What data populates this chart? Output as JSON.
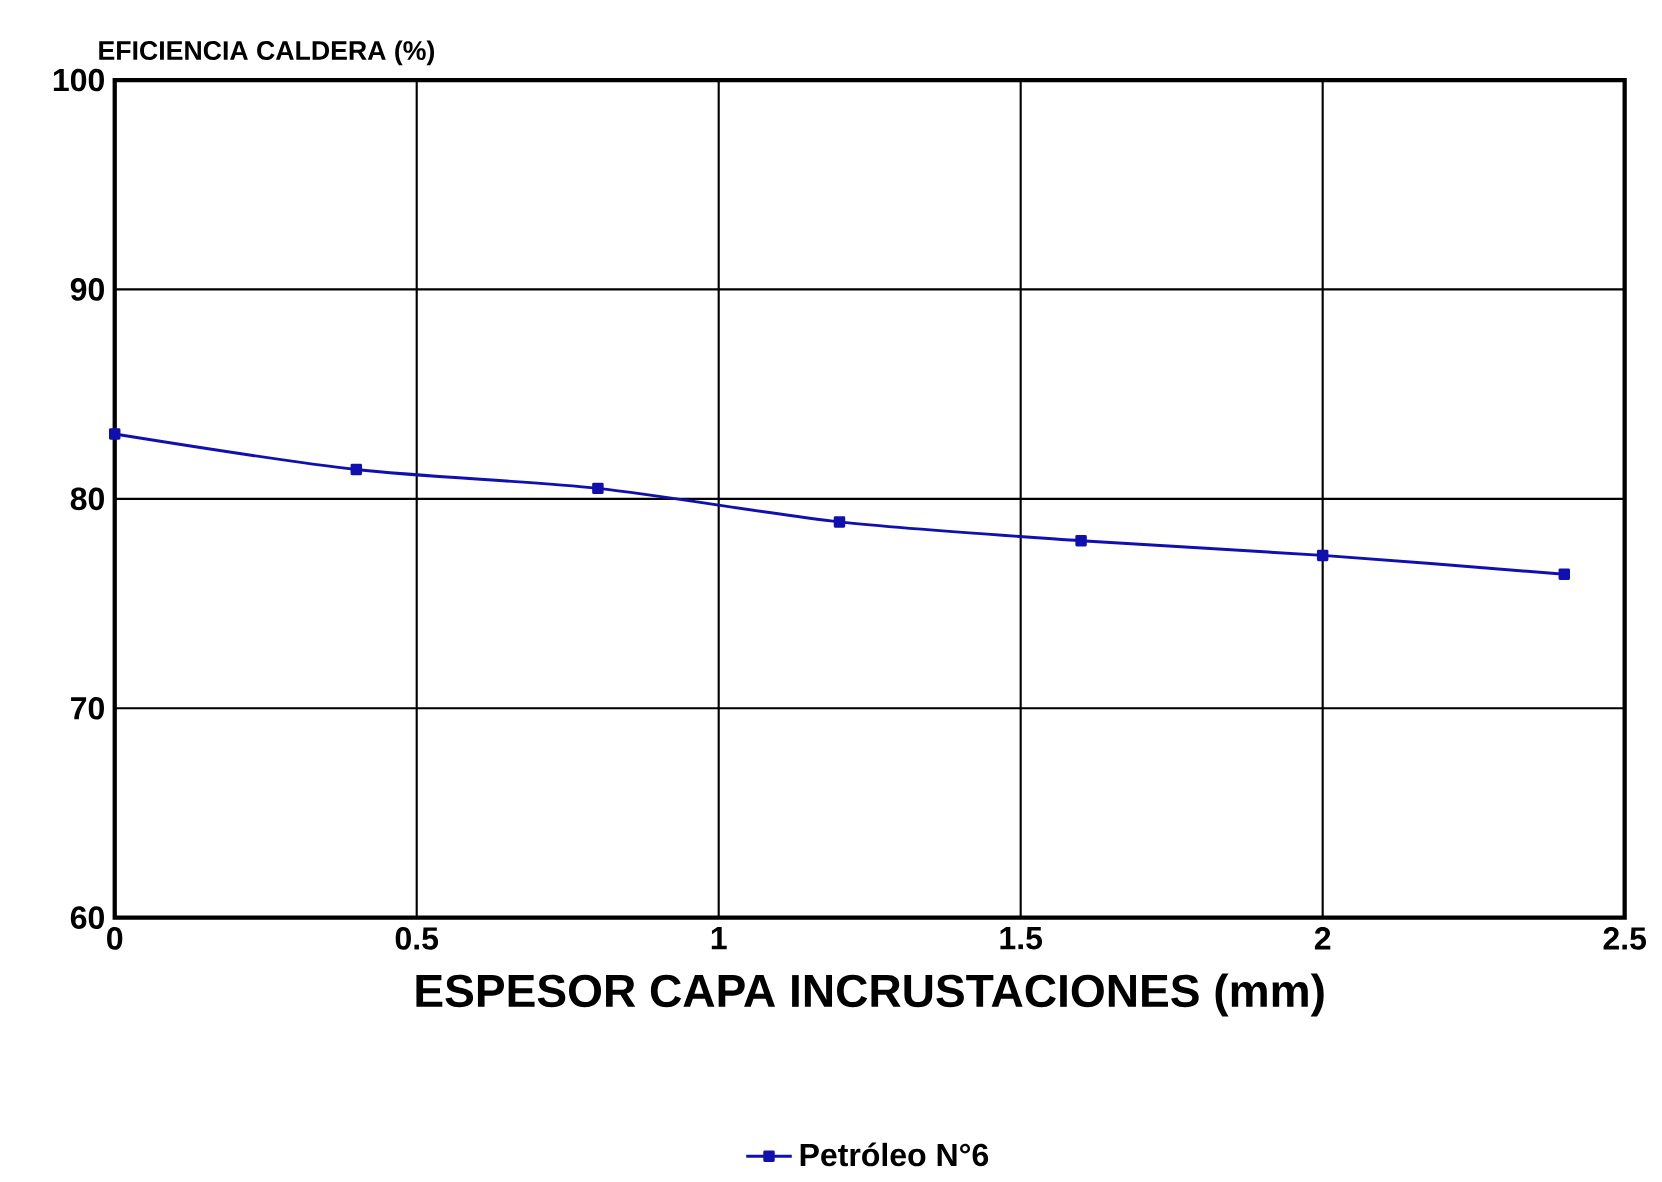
{
  "chart_data": {
    "type": "line",
    "ylabel": "EFICIENCIA CALDERA (%)",
    "xlabel": "ESPESOR CAPA INCRUSTACIONES (mm)",
    "x": [
      0,
      0.4,
      0.8,
      1.2,
      1.6,
      2.0,
      2.4
    ],
    "series": [
      {
        "name": "Petróleo N°6",
        "color": "#1010b0",
        "values": [
          83.1,
          81.4,
          80.5,
          78.9,
          78.0,
          77.3,
          76.4
        ]
      }
    ],
    "xlim": [
      0,
      2.5
    ],
    "xticks": [
      0,
      0.5,
      1,
      1.5,
      2,
      2.5
    ],
    "ylim": [
      60,
      100
    ],
    "yticks": [
      60,
      70,
      80,
      90,
      100
    ],
    "grid": true,
    "legend": "bottom",
    "marker": "square",
    "line_style": "solid"
  }
}
